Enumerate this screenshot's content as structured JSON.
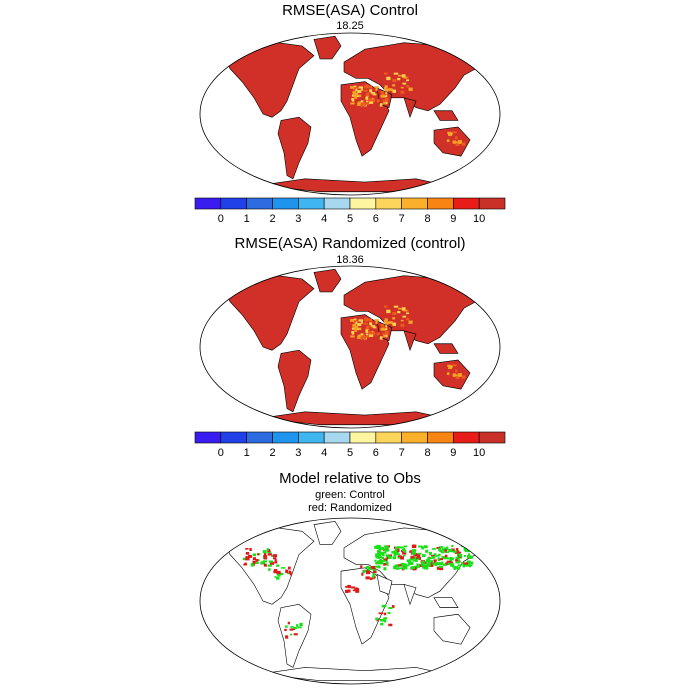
{
  "panels": [
    {
      "title": "RMSE(ASA) Control",
      "subtitle": "18.25",
      "fill": "#d03028",
      "highlight": [
        "#f7a423",
        "#f6d24f",
        "#ee5a1e"
      ]
    },
    {
      "title": "RMSE(ASA) Randomized (control)",
      "subtitle": "18.36",
      "fill": "#d03028",
      "highlight": [
        "#f7a423",
        "#f6d24f",
        "#ee5a1e"
      ]
    },
    {
      "title": "Model relative to Obs",
      "legend_lines": [
        "green: Control",
        "red: Randomized"
      ],
      "colors": {
        "control": "#18e018",
        "randomized": "#e01818"
      }
    }
  ],
  "colorbar": {
    "labels": [
      "0",
      "1",
      "2",
      "3",
      "4",
      "5",
      "6",
      "7",
      "8",
      "9",
      "10"
    ],
    "colors": [
      "#3a1cf0",
      "#2040e8",
      "#2c6ce0",
      "#1e94ec",
      "#40b6f0",
      "#a8d8f0",
      "#fdf5a0",
      "#fcd55a",
      "#fab02a",
      "#f88414",
      "#e81c18",
      "#c83028"
    ]
  }
}
